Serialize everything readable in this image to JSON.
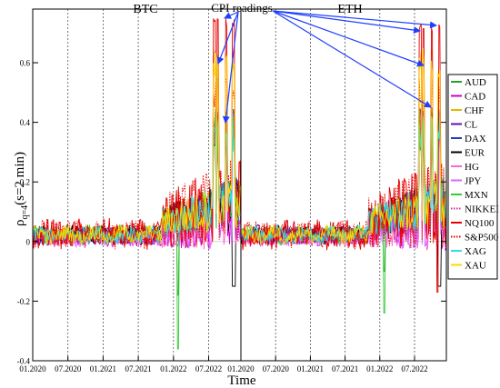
{
  "chart_data": {
    "type": "line",
    "panels": [
      {
        "title": "BTC"
      },
      {
        "title": "ETH"
      }
    ],
    "xlabel": "Time",
    "ylabel_main": "ρ",
    "ylabel_sub": "q=4",
    "ylabel_rest": "(s=2 min)",
    "ylim": [
      -0.4,
      0.78
    ],
    "yticks": [
      -0.4,
      -0.2,
      0,
      0.2,
      0.4,
      0.6
    ],
    "ytick_labels": [
      "-0.4",
      "-0.2",
      "0",
      "0.2",
      "0.4",
      "0.6"
    ],
    "xticks": [
      0,
      6,
      12,
      18,
      24,
      30
    ],
    "xtick_labels": [
      "01.2020",
      "07.2020",
      "01.2021",
      "07.2021",
      "01.2022",
      "07.2022"
    ],
    "x_unit": "months since 01.2020",
    "xlim": [
      0,
      35.5
    ],
    "annotation": {
      "text": "CPI readings"
    },
    "series": [
      {
        "name": "AUD",
        "color": "#2ca02c",
        "dash": "solid"
      },
      {
        "name": "CAD",
        "color": "#cc00cc",
        "dash": "solid"
      },
      {
        "name": "CHF",
        "color": "#e6b800",
        "dash": "solid"
      },
      {
        "name": "CL",
        "color": "#6a0dad",
        "dash": "solid"
      },
      {
        "name": "DAX",
        "color": "#1f3fbf",
        "dash": "solid"
      },
      {
        "name": "EUR",
        "color": "#000000",
        "dash": "solid"
      },
      {
        "name": "HG",
        "color": "#ff66cc",
        "dash": "solid"
      },
      {
        "name": "JPY",
        "color": "#d966ff",
        "dash": "solid"
      },
      {
        "name": "MXN",
        "color": "#33cc33",
        "dash": "solid"
      },
      {
        "name": "NIKKEI",
        "color": "#cc3399",
        "dash": "dotted"
      },
      {
        "name": "NQ100",
        "color": "#e60000",
        "dash": "solid"
      },
      {
        "name": "S&P500",
        "color": "#e60000",
        "dash": "dotted"
      },
      {
        "name": "XAG",
        "color": "#33dddd",
        "dash": "solid"
      },
      {
        "name": "XAU",
        "color": "#ffd700",
        "dash": "solid"
      }
    ],
    "notable_values": {
      "BTC": {
        "max_NQ100": 0.75,
        "max_XAU": 0.62,
        "min_MXN": -0.36
      },
      "ETH": {
        "max_NQ100": 0.73,
        "max_XAU": 0.72,
        "min_MXN": -0.24,
        "min_NQ100": -0.17
      }
    }
  }
}
